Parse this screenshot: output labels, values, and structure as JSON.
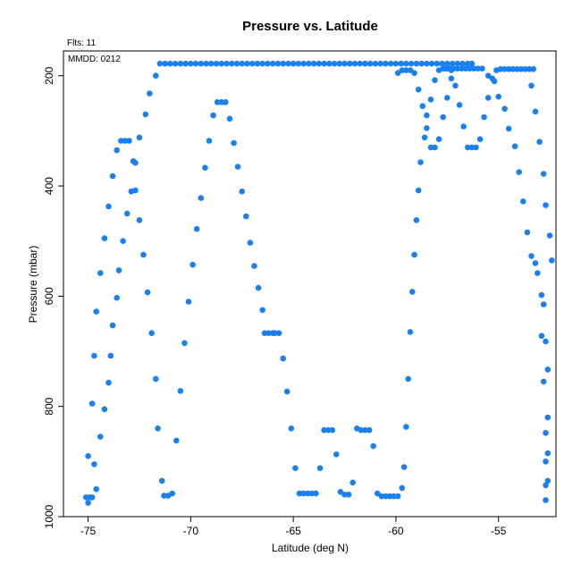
{
  "chart_data": {
    "type": "scatter",
    "title": "Pressure vs. Latitude",
    "annotations": {
      "flts": "Flts: 11",
      "mmdd": "MMDD: 0212"
    },
    "xlabel": "Latitude (deg N)",
    "ylabel": "Pressure (mbar)",
    "xlim": [
      -76.2,
      -52.2
    ],
    "ylim": [
      1000,
      155
    ],
    "y_inverted": true,
    "xticks": [
      -75,
      -70,
      -65,
      -60,
      -55
    ],
    "xtick_labels": [
      "-75",
      "-70",
      "-65",
      "-60",
      "-55"
    ],
    "yticks": [
      200,
      400,
      600,
      800,
      1000
    ],
    "ytick_labels": [
      "200",
      "400",
      "600",
      "800",
      "1000"
    ],
    "grid": false,
    "marker_color": "#1a80f0",
    "series": [
      {
        "points": [
          [
            -75.1,
            965
          ],
          [
            -75.0,
            975
          ],
          [
            -74.9,
            965
          ],
          [
            -74.8,
            965
          ],
          [
            -74.6,
            950
          ],
          [
            -74.7,
            905
          ],
          [
            -75.0,
            890
          ],
          [
            -74.8,
            795
          ],
          [
            -74.7,
            708
          ],
          [
            -74.6,
            628
          ],
          [
            -74.4,
            558
          ],
          [
            -74.2,
            495
          ],
          [
            -74.0,
            437
          ],
          [
            -73.8,
            382
          ],
          [
            -73.6,
            335
          ],
          [
            -73.4,
            318
          ],
          [
            -73.2,
            318
          ],
          [
            -73.0,
            318
          ],
          [
            -72.8,
            355
          ],
          [
            -72.7,
            358
          ],
          [
            -72.5,
            312
          ],
          [
            -72.2,
            270
          ],
          [
            -72.0,
            232
          ],
          [
            -71.7,
            200
          ],
          [
            -74.4,
            855
          ],
          [
            -74.2,
            805
          ],
          [
            -74.0,
            757
          ],
          [
            -73.9,
            708
          ],
          [
            -73.8,
            653
          ],
          [
            -73.6,
            603
          ],
          [
            -73.5,
            553
          ],
          [
            -73.3,
            500
          ],
          [
            -73.1,
            450
          ],
          [
            -72.9,
            410
          ],
          [
            -72.7,
            408
          ],
          [
            -72.5,
            462
          ],
          [
            -72.3,
            525
          ],
          [
            -72.1,
            593
          ],
          [
            -71.9,
            667
          ],
          [
            -71.7,
            750
          ],
          [
            -71.6,
            840
          ],
          [
            -71.4,
            935
          ],
          [
            -71.3,
            962
          ],
          [
            -71.1,
            962
          ],
          [
            -70.9,
            958
          ],
          [
            -70.7,
            862
          ],
          [
            -70.5,
            772
          ],
          [
            -70.3,
            685
          ],
          [
            -70.1,
            610
          ],
          [
            -69.9,
            543
          ],
          [
            -69.7,
            478
          ],
          [
            -69.5,
            422
          ],
          [
            -69.3,
            367
          ],
          [
            -69.1,
            318
          ],
          [
            -68.9,
            272
          ],
          [
            -68.7,
            248
          ],
          [
            -68.5,
            248
          ],
          [
            -68.3,
            248
          ],
          [
            -68.1,
            278
          ],
          [
            -67.9,
            322
          ],
          [
            -67.7,
            365
          ],
          [
            -67.5,
            410
          ],
          [
            -67.3,
            455
          ],
          [
            -67.1,
            503
          ],
          [
            -66.9,
            545
          ],
          [
            -66.7,
            585
          ],
          [
            -66.5,
            625
          ],
          [
            -66.4,
            667
          ],
          [
            -66.2,
            667
          ],
          [
            -66.0,
            667
          ],
          [
            -65.9,
            667
          ],
          [
            -65.7,
            667
          ],
          [
            -65.5,
            713
          ],
          [
            -65.3,
            773
          ],
          [
            -65.1,
            840
          ],
          [
            -64.9,
            912
          ],
          [
            -64.7,
            958
          ],
          [
            -64.5,
            958
          ],
          [
            -64.3,
            958
          ],
          [
            -64.1,
            958
          ],
          [
            -63.9,
            958
          ],
          [
            -63.7,
            912
          ],
          [
            -63.5,
            843
          ],
          [
            -63.3,
            843
          ],
          [
            -63.1,
            843
          ],
          [
            -62.9,
            887
          ],
          [
            -62.7,
            955
          ],
          [
            -62.5,
            960
          ],
          [
            -62.3,
            960
          ],
          [
            -62.1,
            938
          ],
          [
            -61.9,
            840
          ],
          [
            -61.7,
            843
          ],
          [
            -61.5,
            843
          ],
          [
            -61.3,
            843
          ],
          [
            -61.1,
            872
          ],
          [
            -60.9,
            958
          ],
          [
            -60.7,
            963
          ],
          [
            -60.5,
            963
          ],
          [
            -60.3,
            963
          ],
          [
            -60.1,
            963
          ],
          [
            -59.9,
            963
          ],
          [
            -59.7,
            948
          ],
          [
            -59.6,
            910
          ],
          [
            -59.5,
            837
          ],
          [
            -59.4,
            750
          ],
          [
            -59.3,
            665
          ],
          [
            -59.2,
            592
          ],
          [
            -59.1,
            525
          ],
          [
            -59.0,
            462
          ],
          [
            -58.9,
            408
          ],
          [
            -58.8,
            357
          ],
          [
            -58.6,
            312
          ],
          [
            -58.5,
            272
          ],
          [
            -58.3,
            243
          ],
          [
            -58.1,
            208
          ],
          [
            -57.9,
            190
          ],
          [
            -57.7,
            187
          ],
          [
            -57.5,
            187
          ],
          [
            -57.3,
            190
          ],
          [
            -57.1,
            218
          ],
          [
            -56.9,
            253
          ],
          [
            -56.7,
            292
          ],
          [
            -56.5,
            330
          ],
          [
            -56.3,
            330
          ],
          [
            -56.1,
            330
          ],
          [
            -55.9,
            315
          ],
          [
            -55.7,
            275
          ],
          [
            -55.5,
            240
          ],
          [
            -55.3,
            205
          ],
          [
            -55.1,
            190
          ],
          [
            -54.9,
            188
          ],
          [
            -54.7,
            188
          ],
          [
            -54.5,
            188
          ],
          [
            -54.3,
            188
          ],
          [
            -54.1,
            188
          ],
          [
            -53.9,
            188
          ],
          [
            -53.7,
            188
          ],
          [
            -53.5,
            188
          ],
          [
            -53.3,
            188
          ],
          [
            -55.5,
            200
          ],
          [
            -55.2,
            210
          ],
          [
            -55.0,
            238
          ],
          [
            -54.7,
            260
          ],
          [
            -54.5,
            296
          ],
          [
            -54.2,
            328
          ],
          [
            -54.0,
            375
          ],
          [
            -53.8,
            428
          ],
          [
            -53.6,
            484
          ],
          [
            -53.4,
            527
          ],
          [
            -53.2,
            540
          ],
          [
            -53.1,
            558
          ],
          [
            -52.9,
            598
          ],
          [
            -52.8,
            615
          ],
          [
            -52.9,
            672
          ],
          [
            -52.7,
            682
          ],
          [
            -52.8,
            755
          ],
          [
            -52.6,
            733
          ],
          [
            -52.6,
            820
          ],
          [
            -52.7,
            848
          ],
          [
            -52.6,
            885
          ],
          [
            -52.7,
            900
          ],
          [
            -52.6,
            935
          ],
          [
            -52.7,
            943
          ],
          [
            -52.7,
            970
          ],
          [
            -53.4,
            218
          ],
          [
            -53.2,
            265
          ],
          [
            -53.0,
            320
          ],
          [
            -52.8,
            378
          ],
          [
            -52.7,
            435
          ],
          [
            -52.5,
            490
          ],
          [
            -52.4,
            535
          ]
        ]
      },
      {
        "points": [
          [
            -71.5,
            178
          ],
          [
            -71.25,
            178
          ],
          [
            -71.0,
            178
          ],
          [
            -70.75,
            178
          ],
          [
            -70.5,
            178
          ],
          [
            -70.25,
            178
          ],
          [
            -70.0,
            178
          ],
          [
            -69.75,
            178
          ],
          [
            -69.5,
            178
          ],
          [
            -69.25,
            178
          ],
          [
            -69.0,
            178
          ],
          [
            -68.75,
            178
          ],
          [
            -68.5,
            178
          ],
          [
            -68.25,
            178
          ],
          [
            -68.0,
            178
          ],
          [
            -67.75,
            178
          ],
          [
            -67.5,
            178
          ],
          [
            -67.25,
            178
          ],
          [
            -67.0,
            178
          ],
          [
            -66.75,
            178
          ],
          [
            -66.5,
            178
          ],
          [
            -66.25,
            178
          ],
          [
            -66.0,
            178
          ],
          [
            -65.75,
            178
          ],
          [
            -65.5,
            178
          ],
          [
            -65.25,
            178
          ],
          [
            -65.0,
            178
          ],
          [
            -64.75,
            178
          ],
          [
            -64.5,
            178
          ],
          [
            -64.25,
            178
          ],
          [
            -64.0,
            178
          ],
          [
            -63.75,
            178
          ],
          [
            -63.5,
            178
          ],
          [
            -63.25,
            178
          ],
          [
            -63.0,
            178
          ],
          [
            -62.75,
            178
          ],
          [
            -62.5,
            178
          ],
          [
            -62.25,
            178
          ],
          [
            -62.0,
            178
          ],
          [
            -61.75,
            178
          ],
          [
            -61.5,
            178
          ],
          [
            -61.25,
            178
          ],
          [
            -61.0,
            178
          ],
          [
            -60.75,
            178
          ],
          [
            -60.5,
            178
          ],
          [
            -60.25,
            178
          ],
          [
            -60.0,
            178
          ],
          [
            -59.75,
            178
          ],
          [
            -59.5,
            178
          ],
          [
            -59.25,
            178
          ],
          [
            -59.0,
            178
          ],
          [
            -58.75,
            178
          ],
          [
            -58.5,
            178
          ],
          [
            -58.25,
            178
          ],
          [
            -58.0,
            178
          ],
          [
            -57.75,
            178
          ],
          [
            -57.5,
            178
          ],
          [
            -57.25,
            178
          ],
          [
            -57.0,
            178
          ],
          [
            -56.75,
            178
          ],
          [
            -56.5,
            178
          ],
          [
            -56.3,
            178
          ]
        ]
      },
      {
        "points": [
          [
            -57.6,
            187
          ],
          [
            -57.4,
            187
          ],
          [
            -57.2,
            187
          ],
          [
            -57.0,
            187
          ],
          [
            -56.8,
            187
          ],
          [
            -56.6,
            187
          ],
          [
            -56.4,
            187
          ],
          [
            -56.2,
            187
          ],
          [
            -56.0,
            187
          ],
          [
            -55.8,
            187
          ],
          [
            -59.9,
            195
          ],
          [
            -59.7,
            190
          ],
          [
            -59.5,
            190
          ],
          [
            -59.3,
            190
          ],
          [
            -59.1,
            195
          ],
          [
            -58.9,
            225
          ],
          [
            -58.7,
            255
          ],
          [
            -58.5,
            295
          ],
          [
            -58.3,
            330
          ],
          [
            -58.1,
            330
          ],
          [
            -57.9,
            315
          ],
          [
            -57.7,
            275
          ],
          [
            -57.5,
            240
          ],
          [
            -57.3,
            205
          ]
        ]
      }
    ]
  }
}
